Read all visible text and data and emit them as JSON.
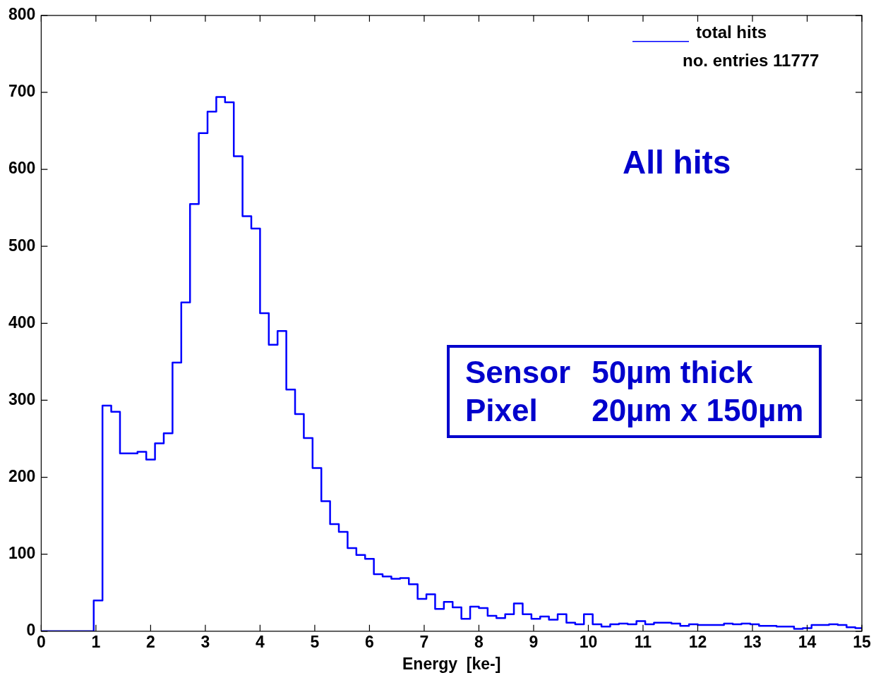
{
  "chart_data": {
    "type": "histogram",
    "xlabel": "Energy  [ke-]",
    "bins": [
      0,
      0.16,
      0.32,
      0.48,
      0.64,
      0.8,
      0.96,
      1.12,
      1.28,
      1.44,
      1.6,
      1.76,
      1.92,
      2.08,
      2.24,
      2.4,
      2.56,
      2.72,
      2.88,
      3.04,
      3.2,
      3.36,
      3.52,
      3.68,
      3.84,
      4,
      4.16,
      4.32,
      4.48,
      4.64,
      4.8,
      4.96,
      5.12,
      5.28,
      5.44,
      5.6,
      5.76,
      5.92,
      6.08,
      6.24,
      6.4,
      6.56,
      6.72,
      6.88,
      7.04,
      7.2,
      7.36,
      7.52,
      7.68,
      7.84,
      8,
      8.16,
      8.32,
      8.48,
      8.64,
      8.8,
      8.96,
      9.12,
      9.28,
      9.44,
      9.6,
      9.76,
      9.92,
      10.08,
      10.24,
      10.4,
      10.56,
      10.72,
      10.88,
      11.04,
      11.2,
      11.36,
      11.52,
      11.68,
      11.84,
      12,
      12.16,
      12.32,
      12.48,
      12.64,
      12.8,
      12.96,
      13.12,
      13.28,
      13.44,
      13.6,
      13.76,
      13.92,
      14.08,
      14.24,
      14.4,
      14.56,
      14.72,
      14.88,
      15
    ],
    "series": [
      {
        "name": "total hits",
        "color": "#0000ff",
        "values": [
          0,
          0,
          0,
          0,
          0,
          0,
          40,
          293,
          285,
          231,
          231,
          233,
          223,
          244,
          257,
          349,
          427,
          555,
          647,
          675,
          694,
          687,
          617,
          539,
          523,
          413,
          372,
          390,
          314,
          282,
          251,
          212,
          169,
          139,
          129,
          108,
          99,
          94,
          74,
          71,
          68,
          69,
          61,
          42,
          48,
          29,
          38,
          31,
          16,
          32,
          30,
          20,
          17,
          22,
          36,
          22,
          16,
          19,
          15,
          22,
          11,
          9,
          22,
          9,
          6,
          9,
          10,
          9,
          13,
          9,
          11,
          11,
          10,
          7,
          9,
          8,
          8,
          8,
          10,
          9,
          10,
          9,
          7,
          7,
          6,
          6,
          3,
          4,
          8,
          8,
          9,
          8,
          5,
          4
        ]
      }
    ],
    "xlim": [
      0,
      15
    ],
    "xticks": [
      0,
      1,
      2,
      3,
      4,
      5,
      6,
      7,
      8,
      9,
      10,
      11,
      12,
      13,
      14,
      15
    ],
    "ylim": [
      0,
      800
    ],
    "yticks": [
      0,
      100,
      200,
      300,
      400,
      500,
      600,
      700,
      800
    ],
    "grid": false,
    "legend": "top right",
    "annotations": [
      "no. entries 11777",
      "All hits",
      "Sensor",
      "50µm thick",
      "Pixel",
      "20µm x 150µm"
    ]
  }
}
